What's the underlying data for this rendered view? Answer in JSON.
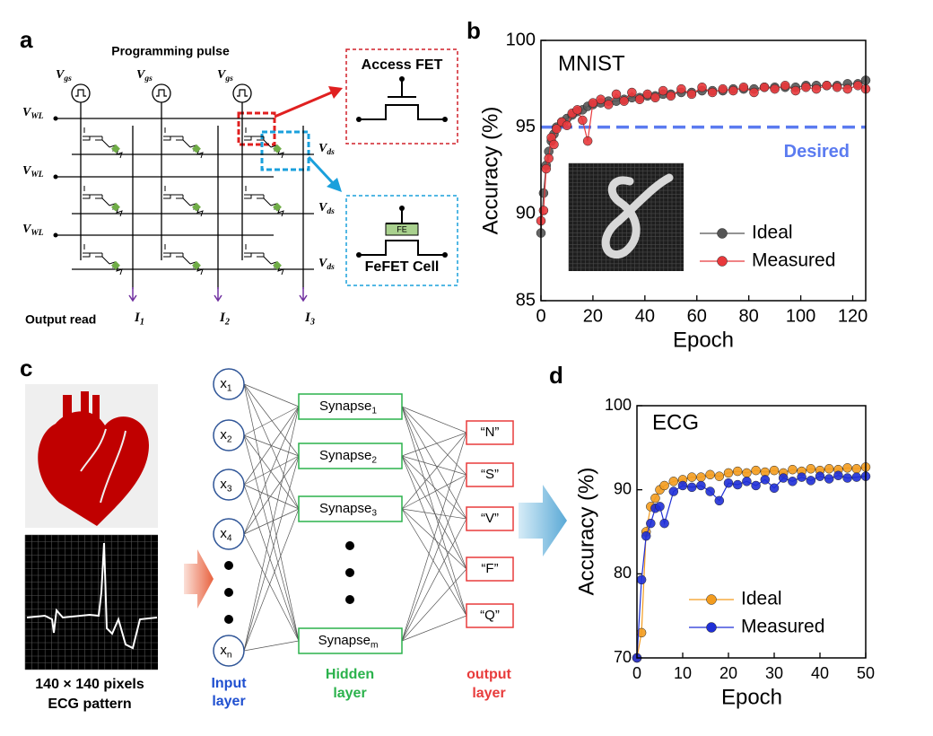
{
  "panel_labels": [
    "a",
    "b",
    "c",
    "d"
  ],
  "circuit": {
    "title": "Programming pulse",
    "gate_voltages": [
      {
        "base": "V",
        "sub": "gs"
      },
      {
        "base": "V",
        "sub": "gs"
      },
      {
        "base": "V",
        "sub": "gs"
      }
    ],
    "word_lines": [
      {
        "base": "V",
        "sub": "WL"
      },
      {
        "base": "V",
        "sub": "WL"
      },
      {
        "base": "V",
        "sub": "WL"
      }
    ],
    "drain_lines": [
      {
        "base": "V",
        "sub": "ds"
      },
      {
        "base": "V",
        "sub": "ds"
      },
      {
        "base": "V",
        "sub": "ds"
      }
    ],
    "output_label": "Output read",
    "currents": [
      {
        "base": "I",
        "sub": "1"
      },
      {
        "base": "I",
        "sub": "2"
      },
      {
        "base": "I",
        "sub": "3"
      }
    ],
    "access_fet": "Access FET",
    "fe_layer": "FE",
    "fefet_cell": "FeFET Cell"
  },
  "network": {
    "image_caption": [
      "140 × 140 pixels",
      "ECG pattern"
    ],
    "inputs": [
      {
        "base": "x",
        "sub": "1"
      },
      {
        "base": "x",
        "sub": "2"
      },
      {
        "base": "x",
        "sub": "3"
      },
      {
        "base": "x",
        "sub": "4"
      },
      {
        "base": "x",
        "sub": "n"
      }
    ],
    "synapses": [
      {
        "base": "Synapse",
        "sub": "1"
      },
      {
        "base": "Synapse",
        "sub": "2"
      },
      {
        "base": "Synapse",
        "sub": "3"
      },
      {
        "base": "Synapse",
        "sub": "m"
      }
    ],
    "outputs": [
      "“N”",
      "“S”",
      "“V”",
      "“F”",
      "“Q”"
    ],
    "input_layer": [
      "Input",
      "layer"
    ],
    "hidden_layer": [
      "Hidden",
      "layer"
    ],
    "output_layer": [
      "output",
      "layer"
    ]
  },
  "chart_data": [
    {
      "type": "line",
      "title": "MNIST",
      "xlabel": "Epoch",
      "ylabel": "Accuracy (%)",
      "x": [
        0,
        1,
        2,
        3,
        4,
        5,
        6,
        8,
        10,
        12,
        14,
        16,
        18,
        20,
        23,
        26,
        29,
        32,
        35,
        38,
        41,
        44,
        47,
        50,
        54,
        58,
        62,
        66,
        70,
        74,
        78,
        82,
        86,
        90,
        94,
        98,
        102,
        106,
        110,
        114,
        118,
        122,
        125
      ],
      "series": [
        {
          "name": "Ideal",
          "color": "#555555",
          "values": [
            88.9,
            91.2,
            92.8,
            93.6,
            94.2,
            94.6,
            95.0,
            95.3,
            95.5,
            95.7,
            95.9,
            96.0,
            96.2,
            96.3,
            96.4,
            96.5,
            96.5,
            96.6,
            96.7,
            96.7,
            96.8,
            96.8,
            96.9,
            96.9,
            97.0,
            97.0,
            97.1,
            97.1,
            97.1,
            97.2,
            97.2,
            97.2,
            97.3,
            97.3,
            97.3,
            97.3,
            97.4,
            97.4,
            97.4,
            97.4,
            97.5,
            97.5,
            97.7
          ]
        },
        {
          "name": "Measured",
          "color": "#e8393c",
          "values": [
            89.6,
            90.2,
            92.6,
            93.2,
            94.4,
            94.0,
            94.9,
            95.3,
            95.1,
            95.8,
            96.0,
            95.4,
            94.2,
            96.4,
            96.6,
            96.3,
            96.9,
            96.5,
            97.0,
            96.6,
            96.9,
            96.7,
            97.1,
            96.8,
            97.2,
            96.9,
            97.3,
            97.0,
            97.2,
            97.1,
            97.3,
            97.0,
            97.3,
            97.2,
            97.4,
            97.1,
            97.3,
            97.2,
            97.4,
            97.3,
            97.2,
            97.4,
            97.2
          ]
        }
      ],
      "xlim": [
        0,
        125
      ],
      "ylim": [
        85,
        100
      ],
      "xticks": [
        0,
        20,
        40,
        60,
        80,
        100,
        120
      ],
      "yticks": [
        85,
        90,
        95,
        100
      ],
      "threshold": {
        "value": 95,
        "label": "Desired",
        "color": "#5b7bf0"
      }
    },
    {
      "type": "line",
      "title": "ECG",
      "xlabel": "Epoch",
      "ylabel": "Accuracy (%)",
      "x": [
        0,
        1,
        2,
        3,
        4,
        5,
        6,
        8,
        10,
        12,
        14,
        16,
        18,
        20,
        22,
        24,
        26,
        28,
        30,
        32,
        34,
        36,
        38,
        40,
        42,
        44,
        46,
        48,
        50
      ],
      "series": [
        {
          "name": "Ideal",
          "color": "#f39c1f",
          "values": [
            70,
            73,
            85,
            88,
            89,
            90,
            90.5,
            91,
            91.2,
            91.5,
            91.5,
            91.8,
            91.6,
            92,
            92.2,
            92,
            92.3,
            92.1,
            92.3,
            92,
            92.4,
            92.2,
            92.5,
            92.3,
            92.5,
            92.4,
            92.6,
            92.5,
            92.7
          ]
        },
        {
          "name": "Measured",
          "color": "#1f2fd6",
          "values": [
            70,
            79.3,
            84.5,
            86,
            87.8,
            88,
            86,
            89.8,
            90.5,
            90.3,
            90.5,
            89.8,
            88.7,
            90.8,
            90.6,
            91,
            90.5,
            91.2,
            90.2,
            91.4,
            91,
            91.5,
            91.1,
            91.6,
            91.3,
            91.7,
            91.4,
            91.5,
            91.6
          ]
        }
      ],
      "xlim": [
        0,
        50
      ],
      "ylim": [
        70,
        100
      ],
      "xticks": [
        0,
        10,
        20,
        30,
        40,
        50
      ],
      "yticks": [
        70,
        80,
        90,
        100
      ]
    }
  ]
}
